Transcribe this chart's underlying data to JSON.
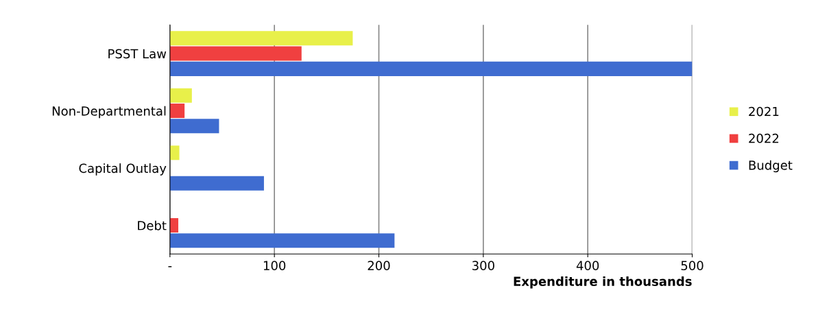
{
  "chart_data": {
    "type": "bar",
    "orientation": "horizontal",
    "xlabel": "Expenditure in thousands",
    "categories": [
      "PSST Law",
      "Non-Departmental",
      "Capital Outlay",
      "Debt"
    ],
    "series": [
      {
        "name": "2021",
        "color": "#e8f04a",
        "values": [
          175,
          21,
          9,
          null
        ]
      },
      {
        "name": "2022",
        "color": "#f04040",
        "values": [
          126,
          14,
          null,
          8
        ]
      },
      {
        "name": "Budget",
        "color": "#3f6cd0",
        "values": [
          500,
          47,
          90,
          215
        ]
      }
    ],
    "xlim": [
      0,
      500
    ],
    "xticks": [
      {
        "value": 0,
        "label": "-"
      },
      100,
      200,
      300,
      400,
      500
    ],
    "grid": "x",
    "legend": "right"
  }
}
